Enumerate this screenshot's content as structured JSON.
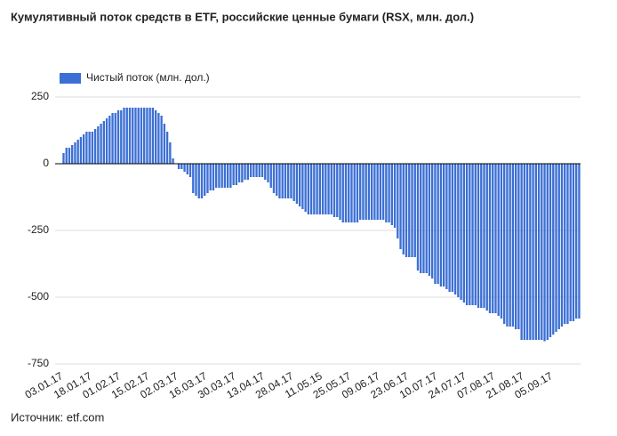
{
  "chart_data": {
    "type": "bar",
    "title": "Кумулятивный поток средств в ETF, российские ценные бумаги (RSX, млн. дол.)",
    "source": "Источник: etf.com",
    "series": [
      {
        "name": "Чистый поток (млн. дол.)",
        "color": "#3b6fd4",
        "values": [
          40,
          60,
          60,
          70,
          80,
          90,
          100,
          110,
          120,
          120,
          120,
          130,
          140,
          150,
          160,
          170,
          180,
          190,
          190,
          200,
          200,
          210,
          210,
          210,
          210,
          210,
          210,
          210,
          210,
          210,
          210,
          210,
          200,
          190,
          180,
          150,
          120,
          80,
          20,
          0,
          -20,
          -20,
          -30,
          -40,
          -50,
          -110,
          -120,
          -130,
          -130,
          -120,
          -110,
          -100,
          -100,
          -90,
          -90,
          -90,
          -90,
          -90,
          -90,
          -80,
          -80,
          -70,
          -70,
          -60,
          -60,
          -50,
          -50,
          -50,
          -50,
          -50,
          -60,
          -70,
          -90,
          -110,
          -120,
          -130,
          -130,
          -130,
          -130,
          -130,
          -140,
          -150,
          -160,
          -170,
          -180,
          -190,
          -190,
          -190,
          -190,
          -190,
          -190,
          -190,
          -190,
          -190,
          -200,
          -200,
          -210,
          -220,
          -220,
          -220,
          -220,
          -220,
          -220,
          -210,
          -210,
          -210,
          -210,
          -210,
          -210,
          -210,
          -210,
          -210,
          -220,
          -220,
          -230,
          -240,
          -280,
          -320,
          -340,
          -350,
          -350,
          -350,
          -350,
          -400,
          -410,
          -410,
          -410,
          -420,
          -430,
          -450,
          -450,
          -460,
          -460,
          -470,
          -480,
          -480,
          -490,
          -500,
          -510,
          -520,
          -530,
          -530,
          -530,
          -530,
          -540,
          -540,
          -540,
          -550,
          -560,
          -560,
          -560,
          -570,
          -580,
          -600,
          -610,
          -610,
          -610,
          -620,
          -620,
          -660,
          -660,
          -660,
          -660,
          -660,
          -660,
          -660,
          -660,
          -665,
          -660,
          -650,
          -640,
          -630,
          -620,
          -610,
          -600,
          -600,
          -590,
          -590,
          -580,
          -580
        ]
      }
    ],
    "categories": [
      "03.01.17",
      null,
      null,
      null,
      null,
      null,
      null,
      null,
      null,
      null,
      "18.01.17",
      null,
      null,
      null,
      null,
      null,
      null,
      null,
      null,
      null,
      "01.02.17",
      null,
      null,
      null,
      null,
      null,
      null,
      null,
      null,
      null,
      "15.02.17",
      null,
      null,
      null,
      null,
      null,
      null,
      null,
      null,
      null,
      "02.03.17",
      null,
      null,
      null,
      null,
      null,
      null,
      null,
      null,
      null,
      "16.03.17",
      null,
      null,
      null,
      null,
      null,
      null,
      null,
      null,
      null,
      "30.03.17",
      null,
      null,
      null,
      null,
      null,
      null,
      null,
      null,
      null,
      "13.04.17",
      null,
      null,
      null,
      null,
      null,
      null,
      null,
      null,
      null,
      "28.04.17",
      null,
      null,
      null,
      null,
      null,
      null,
      null,
      null,
      null,
      "11.05.15",
      null,
      null,
      null,
      null,
      null,
      null,
      null,
      null,
      null,
      "25.05.17",
      null,
      null,
      null,
      null,
      null,
      null,
      null,
      null,
      null,
      "09.06.17",
      null,
      null,
      null,
      null,
      null,
      null,
      null,
      null,
      null,
      "23.06.17",
      null,
      null,
      null,
      null,
      null,
      null,
      null,
      null,
      null,
      "10.07.17",
      null,
      null,
      null,
      null,
      null,
      null,
      null,
      null,
      null,
      "24.07.17",
      null,
      null,
      null,
      null,
      null,
      null,
      null,
      null,
      null,
      "07.08.17",
      null,
      null,
      null,
      null,
      null,
      null,
      null,
      null,
      null,
      "21.08.17",
      null,
      null,
      null,
      null,
      null,
      null,
      null,
      null,
      null,
      "05.09.17",
      null,
      null,
      null,
      null,
      null,
      null,
      null,
      null,
      null
    ],
    "ylim": [
      -770,
      380
    ],
    "yticks": [
      250,
      0,
      -250,
      -500,
      -750
    ],
    "grid": true,
    "legend": "top-left"
  }
}
